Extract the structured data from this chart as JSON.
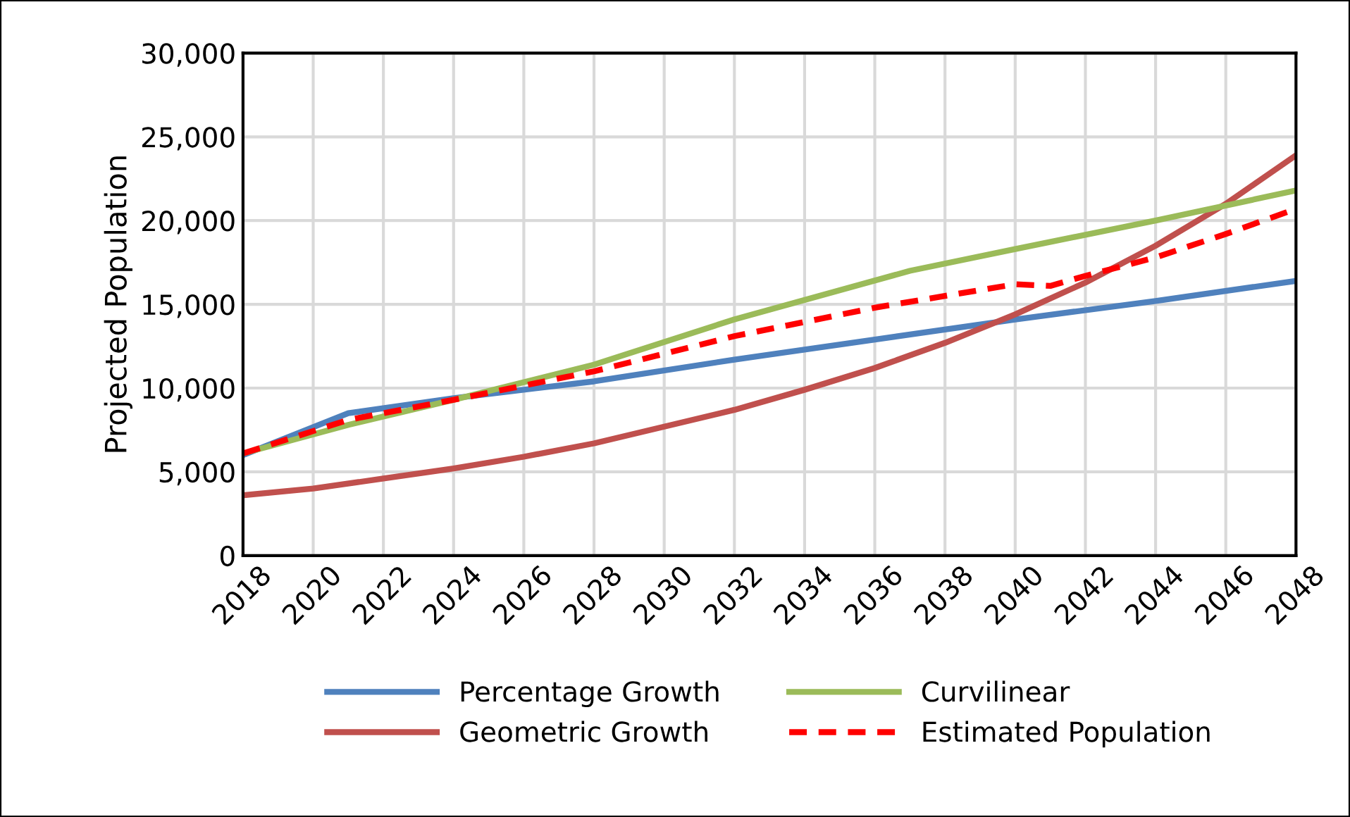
{
  "chart_data": {
    "type": "line",
    "ylabel": "Projected Population",
    "xlim": [
      2018,
      2048
    ],
    "xticks": [
      2018,
      2020,
      2022,
      2024,
      2026,
      2028,
      2030,
      2032,
      2034,
      2036,
      2038,
      2040,
      2042,
      2044,
      2046,
      2048
    ],
    "ylim": [
      0,
      30000
    ],
    "yticks": [
      {
        "value": 0,
        "label": "0"
      },
      {
        "value": 5000,
        "label": "5,000"
      },
      {
        "value": 10000,
        "label": "10,000"
      },
      {
        "value": 15000,
        "label": "15,000"
      },
      {
        "value": 20000,
        "label": "20,000"
      },
      {
        "value": 25000,
        "label": "25,000"
      },
      {
        "value": 30000,
        "label": "30,000"
      }
    ],
    "grid": true,
    "legend": "bottom",
    "marker": "none",
    "series": [
      {
        "name": "Percentage Growth",
        "color": "#4f81bd",
        "x": [
          2018,
          2021,
          2024,
          2028,
          2032,
          2036,
          2040,
          2044,
          2048
        ],
        "values": [
          6000,
          8500,
          9400,
          10400,
          11700,
          12900,
          14100,
          15200,
          16400
        ]
      },
      {
        "name": "Geometric Growth",
        "color": "#c0504d",
        "x": [
          2018,
          2020,
          2022,
          2024,
          2026,
          2028,
          2030,
          2032,
          2034,
          2036,
          2038,
          2040,
          2042,
          2044,
          2046,
          2048
        ],
        "values": [
          3600,
          4000,
          4600,
          5200,
          5900,
          6700,
          7700,
          8700,
          9900,
          11200,
          12700,
          14400,
          16300,
          18500,
          21000,
          23900
        ]
      },
      {
        "name": "Curvilinear",
        "color": "#9bbb59",
        "x": [
          2018,
          2021,
          2024,
          2028,
          2032,
          2037,
          2040,
          2044,
          2048
        ],
        "values": [
          6100,
          7800,
          9300,
          11400,
          14100,
          17000,
          18300,
          20000,
          21800
        ]
      },
      {
        "name": "Estimated Population",
        "color": "#ff0000",
        "line_style": "dashed",
        "x": [
          2018,
          2021,
          2024,
          2028,
          2032,
          2036,
          2038,
          2040,
          2041,
          2042,
          2044,
          2046,
          2048
        ],
        "values": [
          6100,
          8100,
          9300,
          11000,
          13100,
          14800,
          15500,
          16200,
          16100,
          16700,
          17800,
          19200,
          20700
        ]
      }
    ]
  }
}
